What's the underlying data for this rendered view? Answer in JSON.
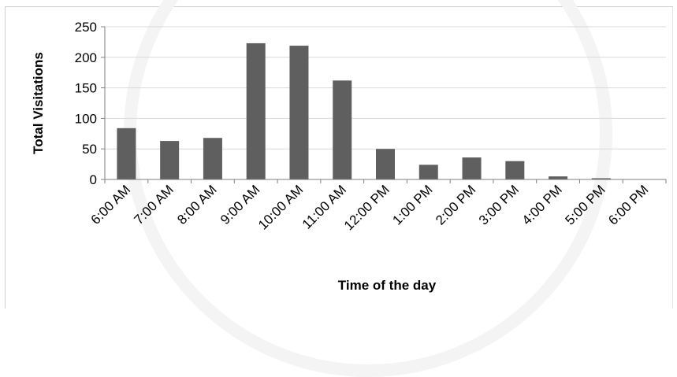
{
  "chart_data": {
    "type": "bar",
    "categories": [
      "6:00 AM",
      "7:00 AM",
      "8:00 AM",
      "9:00 AM",
      "10:00 AM",
      "11:00 AM",
      "12:00 PM",
      "1:00 PM",
      "2:00 PM",
      "3:00 PM",
      "4:00 PM",
      "5:00 PM",
      "6:00 PM"
    ],
    "values": [
      84,
      63,
      68,
      223,
      219,
      162,
      50,
      24,
      36,
      30,
      5,
      2,
      0
    ],
    "xlabel": "Time of the day",
    "ylabel": "Total Visitations",
    "ylim": [
      0,
      250
    ],
    "yticks": [
      0,
      50,
      100,
      150,
      200,
      250
    ],
    "grid": true,
    "legend": "none",
    "colors": {
      "bar": "#5f5f5f",
      "grid": "#d9d9d9",
      "axis": "#7f7f7f"
    }
  }
}
